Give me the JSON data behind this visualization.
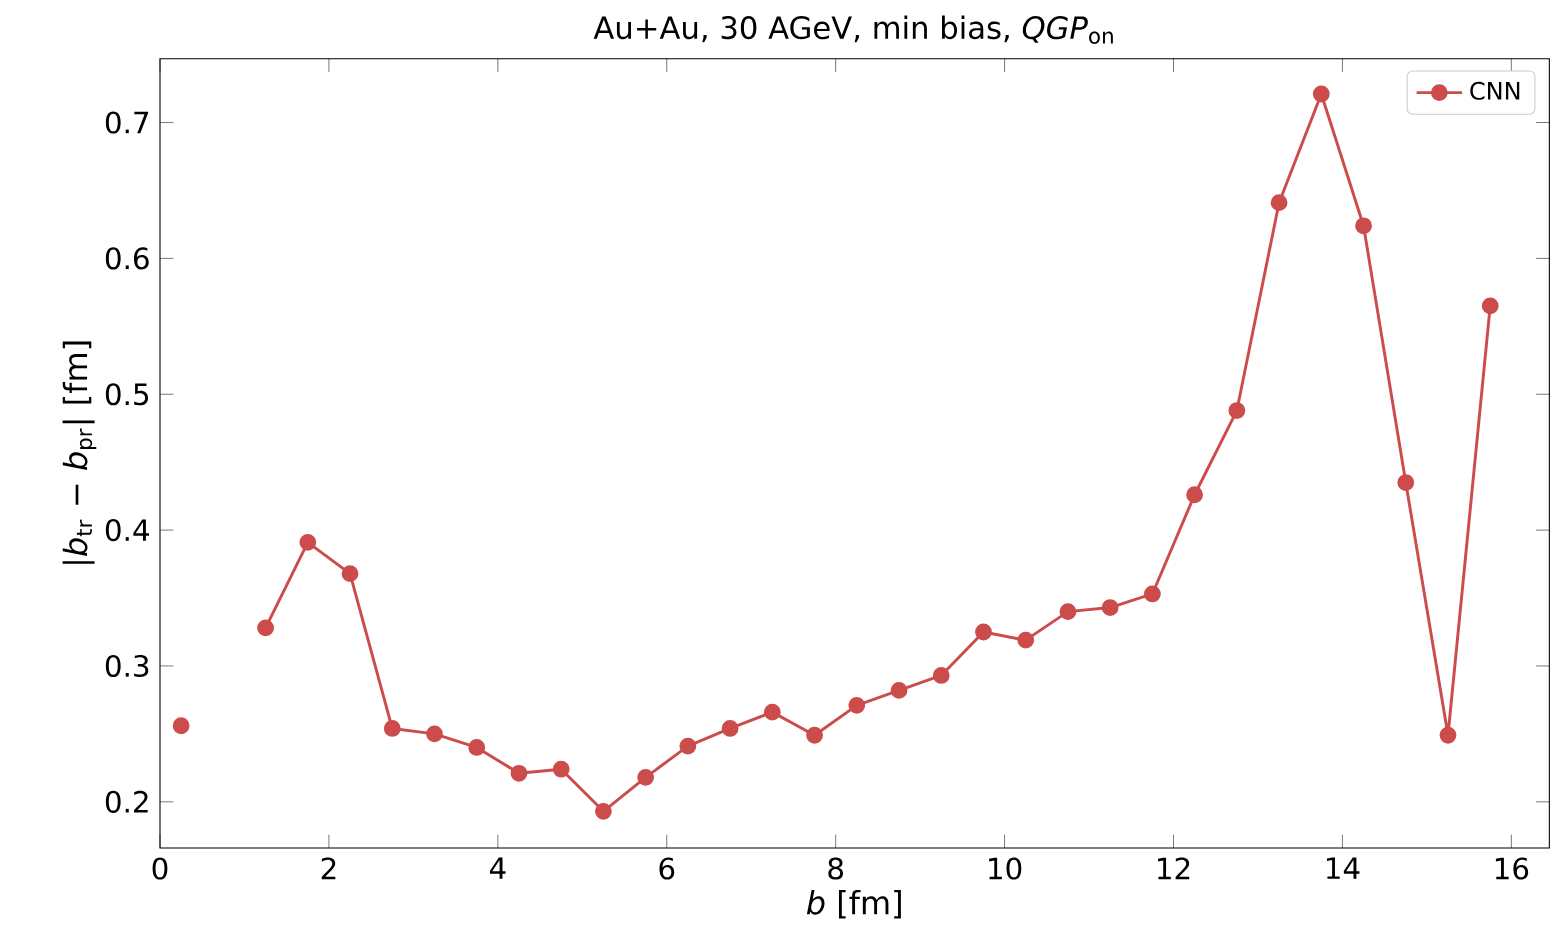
{
  "chart_data": {
    "type": "line",
    "title": "Au+Au, 30 AGeV, min bias, *QGP*$_{on}$",
    "xlabel": "*b* [fm]",
    "ylabel": "|*b*$_{tr}$ − *b*$_{pr}$| [fm]",
    "x": [
      0.25,
      0.75,
      1.25,
      1.75,
      2.25,
      2.75,
      3.25,
      3.75,
      4.25,
      4.75,
      5.25,
      5.75,
      6.25,
      6.75,
      7.25,
      7.75,
      8.25,
      8.75,
      9.25,
      9.75,
      10.25,
      10.75,
      11.25,
      11.75,
      12.25,
      12.75,
      13.25,
      13.75,
      14.25,
      14.75,
      15.25,
      15.75
    ],
    "series": [
      {
        "name": "CNN",
        "color": "#cc4c4c",
        "values": [
          0.256,
          null,
          0.328,
          0.391,
          0.368,
          0.254,
          0.25,
          0.24,
          0.221,
          0.224,
          0.193,
          0.218,
          0.241,
          0.254,
          0.266,
          0.249,
          0.271,
          0.282,
          0.293,
          0.325,
          0.319,
          0.34,
          0.343,
          0.353,
          0.426,
          0.488,
          0.641,
          0.721,
          0.624,
          0.435,
          0.249,
          0.565
        ]
      }
    ],
    "xlim": [
      0,
      16.45
    ],
    "ylim": [
      0.166,
      0.747
    ],
    "xticks": [
      0,
      2,
      4,
      6,
      8,
      10,
      12,
      14,
      16
    ],
    "yticks": [
      0.2,
      0.3,
      0.4,
      0.5,
      0.6,
      0.7
    ],
    "legend": "top right",
    "marker": "circle",
    "line_style": "solid",
    "grid": false
  }
}
